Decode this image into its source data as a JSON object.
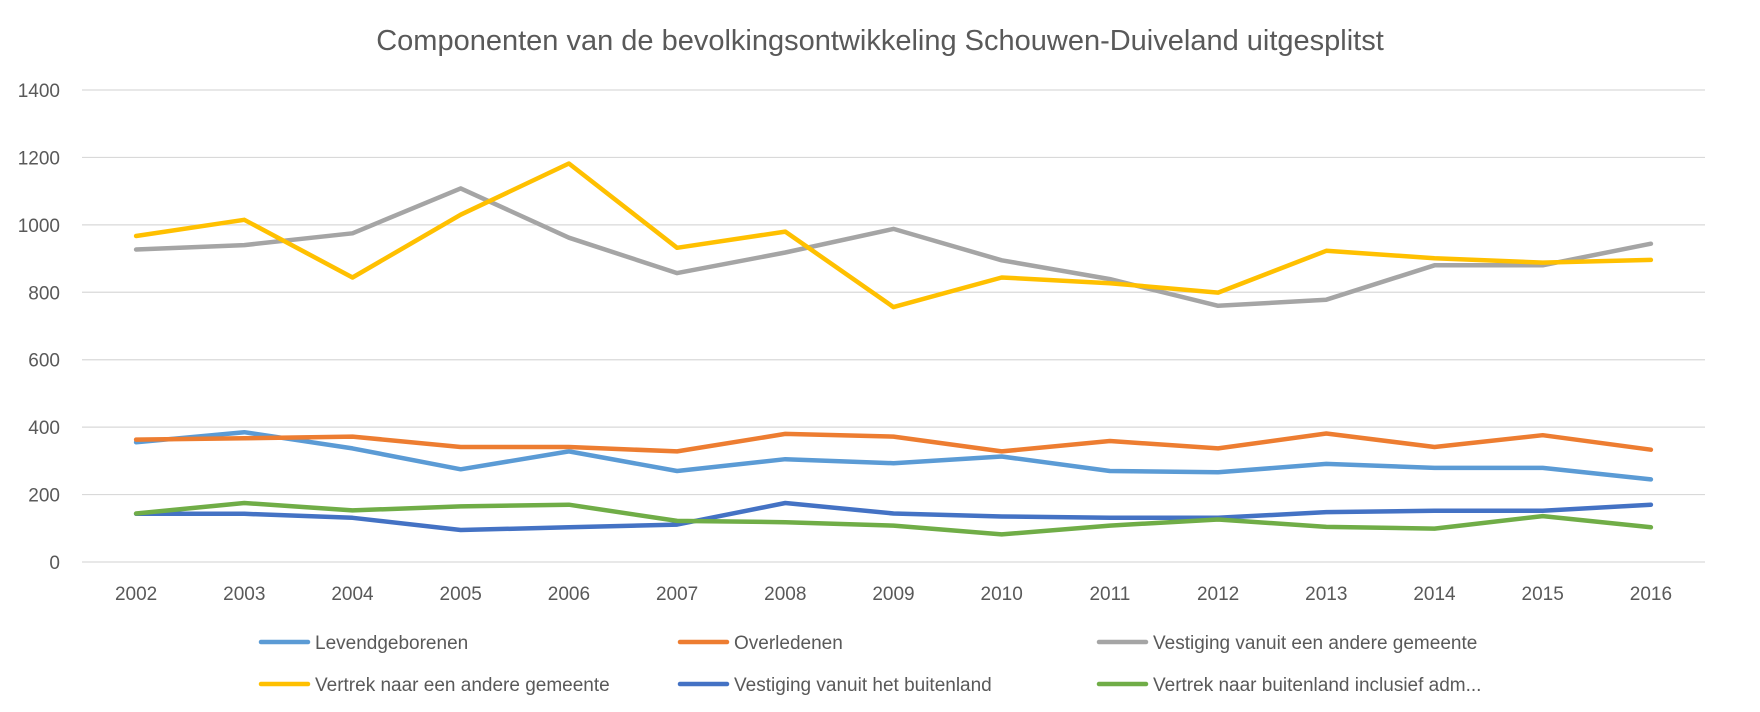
{
  "chart_data": {
    "type": "line",
    "title": "Componenten  van de bevolkingsontwikkeling  Schouwen-Duiveland  uitgesplitst",
    "xlabel": "",
    "ylabel": "",
    "ylim": [
      0,
      1400
    ],
    "yticks": [
      "0",
      "200",
      "400",
      "600",
      "800",
      "1000",
      "1200",
      "1400"
    ],
    "grid": true,
    "legend_position": "bottom",
    "categories": [
      "2002",
      "2003",
      "2004",
      "2005",
      "2006",
      "2007",
      "2008",
      "2009",
      "2010",
      "2011",
      "2012",
      "2013",
      "2014",
      "2015",
      "2016"
    ],
    "series": [
      {
        "name": "Levendgeborenen",
        "color": "#5b9bd5",
        "values": [
          355,
          385,
          337,
          275,
          328,
          270,
          305,
          293,
          313,
          270,
          266,
          291,
          279,
          279,
          245
        ]
      },
      {
        "name": "Overledenen",
        "color": "#ed7d31",
        "values": [
          363,
          367,
          372,
          341,
          341,
          328,
          380,
          372,
          328,
          359,
          337,
          381,
          341,
          376,
          333
        ]
      },
      {
        "name": "Vestiging vanuit een andere gemeente",
        "color": "#a5a5a5",
        "values": [
          927,
          940,
          975,
          1108,
          962,
          857,
          918,
          988,
          895,
          839,
          760,
          778,
          880,
          880,
          944
        ]
      },
      {
        "name": "Vertrek naar een andere gemeente",
        "color": "#ffc000",
        "values": [
          967,
          1015,
          844,
          1030,
          1182,
          932,
          980,
          756,
          844,
          827,
          799,
          923,
          901,
          888,
          896
        ]
      },
      {
        "name": "Vestiging vanuit het buitenland",
        "color": "#4472c4",
        "values": [
          143,
          143,
          131,
          95,
          103,
          111,
          175,
          144,
          135,
          131,
          131,
          148,
          152,
          152,
          170
        ]
      },
      {
        "name": "Vertrek naar buitenland inclusief adm...",
        "color": "#70ad47",
        "values": [
          144,
          175,
          153,
          165,
          170,
          122,
          118,
          108,
          82,
          108,
          126,
          104,
          99,
          136,
          103
        ]
      }
    ]
  }
}
